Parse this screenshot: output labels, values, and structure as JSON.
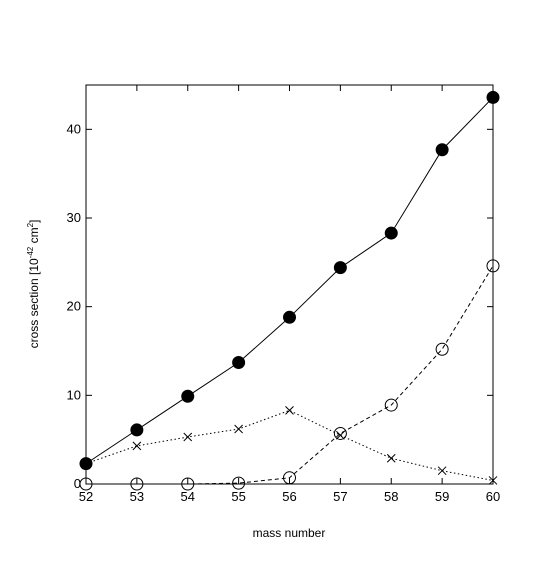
{
  "chart_data": {
    "type": "line",
    "xlabel": "mass number",
    "ylabel_base": "cross section  [10",
    "ylabel_exp1": "-42",
    "ylabel_mid": " cm",
    "ylabel_exp2": "2",
    "ylabel_end": "]",
    "xlim": [
      52,
      60
    ],
    "ylim": [
      0,
      45
    ],
    "x_ticks": [
      52,
      53,
      54,
      55,
      56,
      57,
      58,
      59,
      60
    ],
    "y_ticks": [
      0,
      10,
      20,
      30,
      40
    ],
    "grid": false,
    "x": [
      52,
      53,
      54,
      55,
      56,
      57,
      58,
      59,
      60
    ],
    "series": [
      {
        "style": "solid",
        "marker": "filled-circle",
        "values": [
          2.3,
          6.1,
          9.9,
          13.7,
          18.8,
          24.4,
          28.3,
          37.7,
          43.6
        ]
      },
      {
        "style": "dotted",
        "marker": "cross",
        "values": [
          2.3,
          4.3,
          5.3,
          6.2,
          8.3,
          5.5,
          2.9,
          1.5,
          0.4
        ]
      },
      {
        "style": "dashed",
        "marker": "open-circle",
        "values": [
          0,
          0,
          0,
          0.1,
          0.7,
          5.7,
          8.9,
          15.2,
          24.6
        ]
      }
    ]
  }
}
